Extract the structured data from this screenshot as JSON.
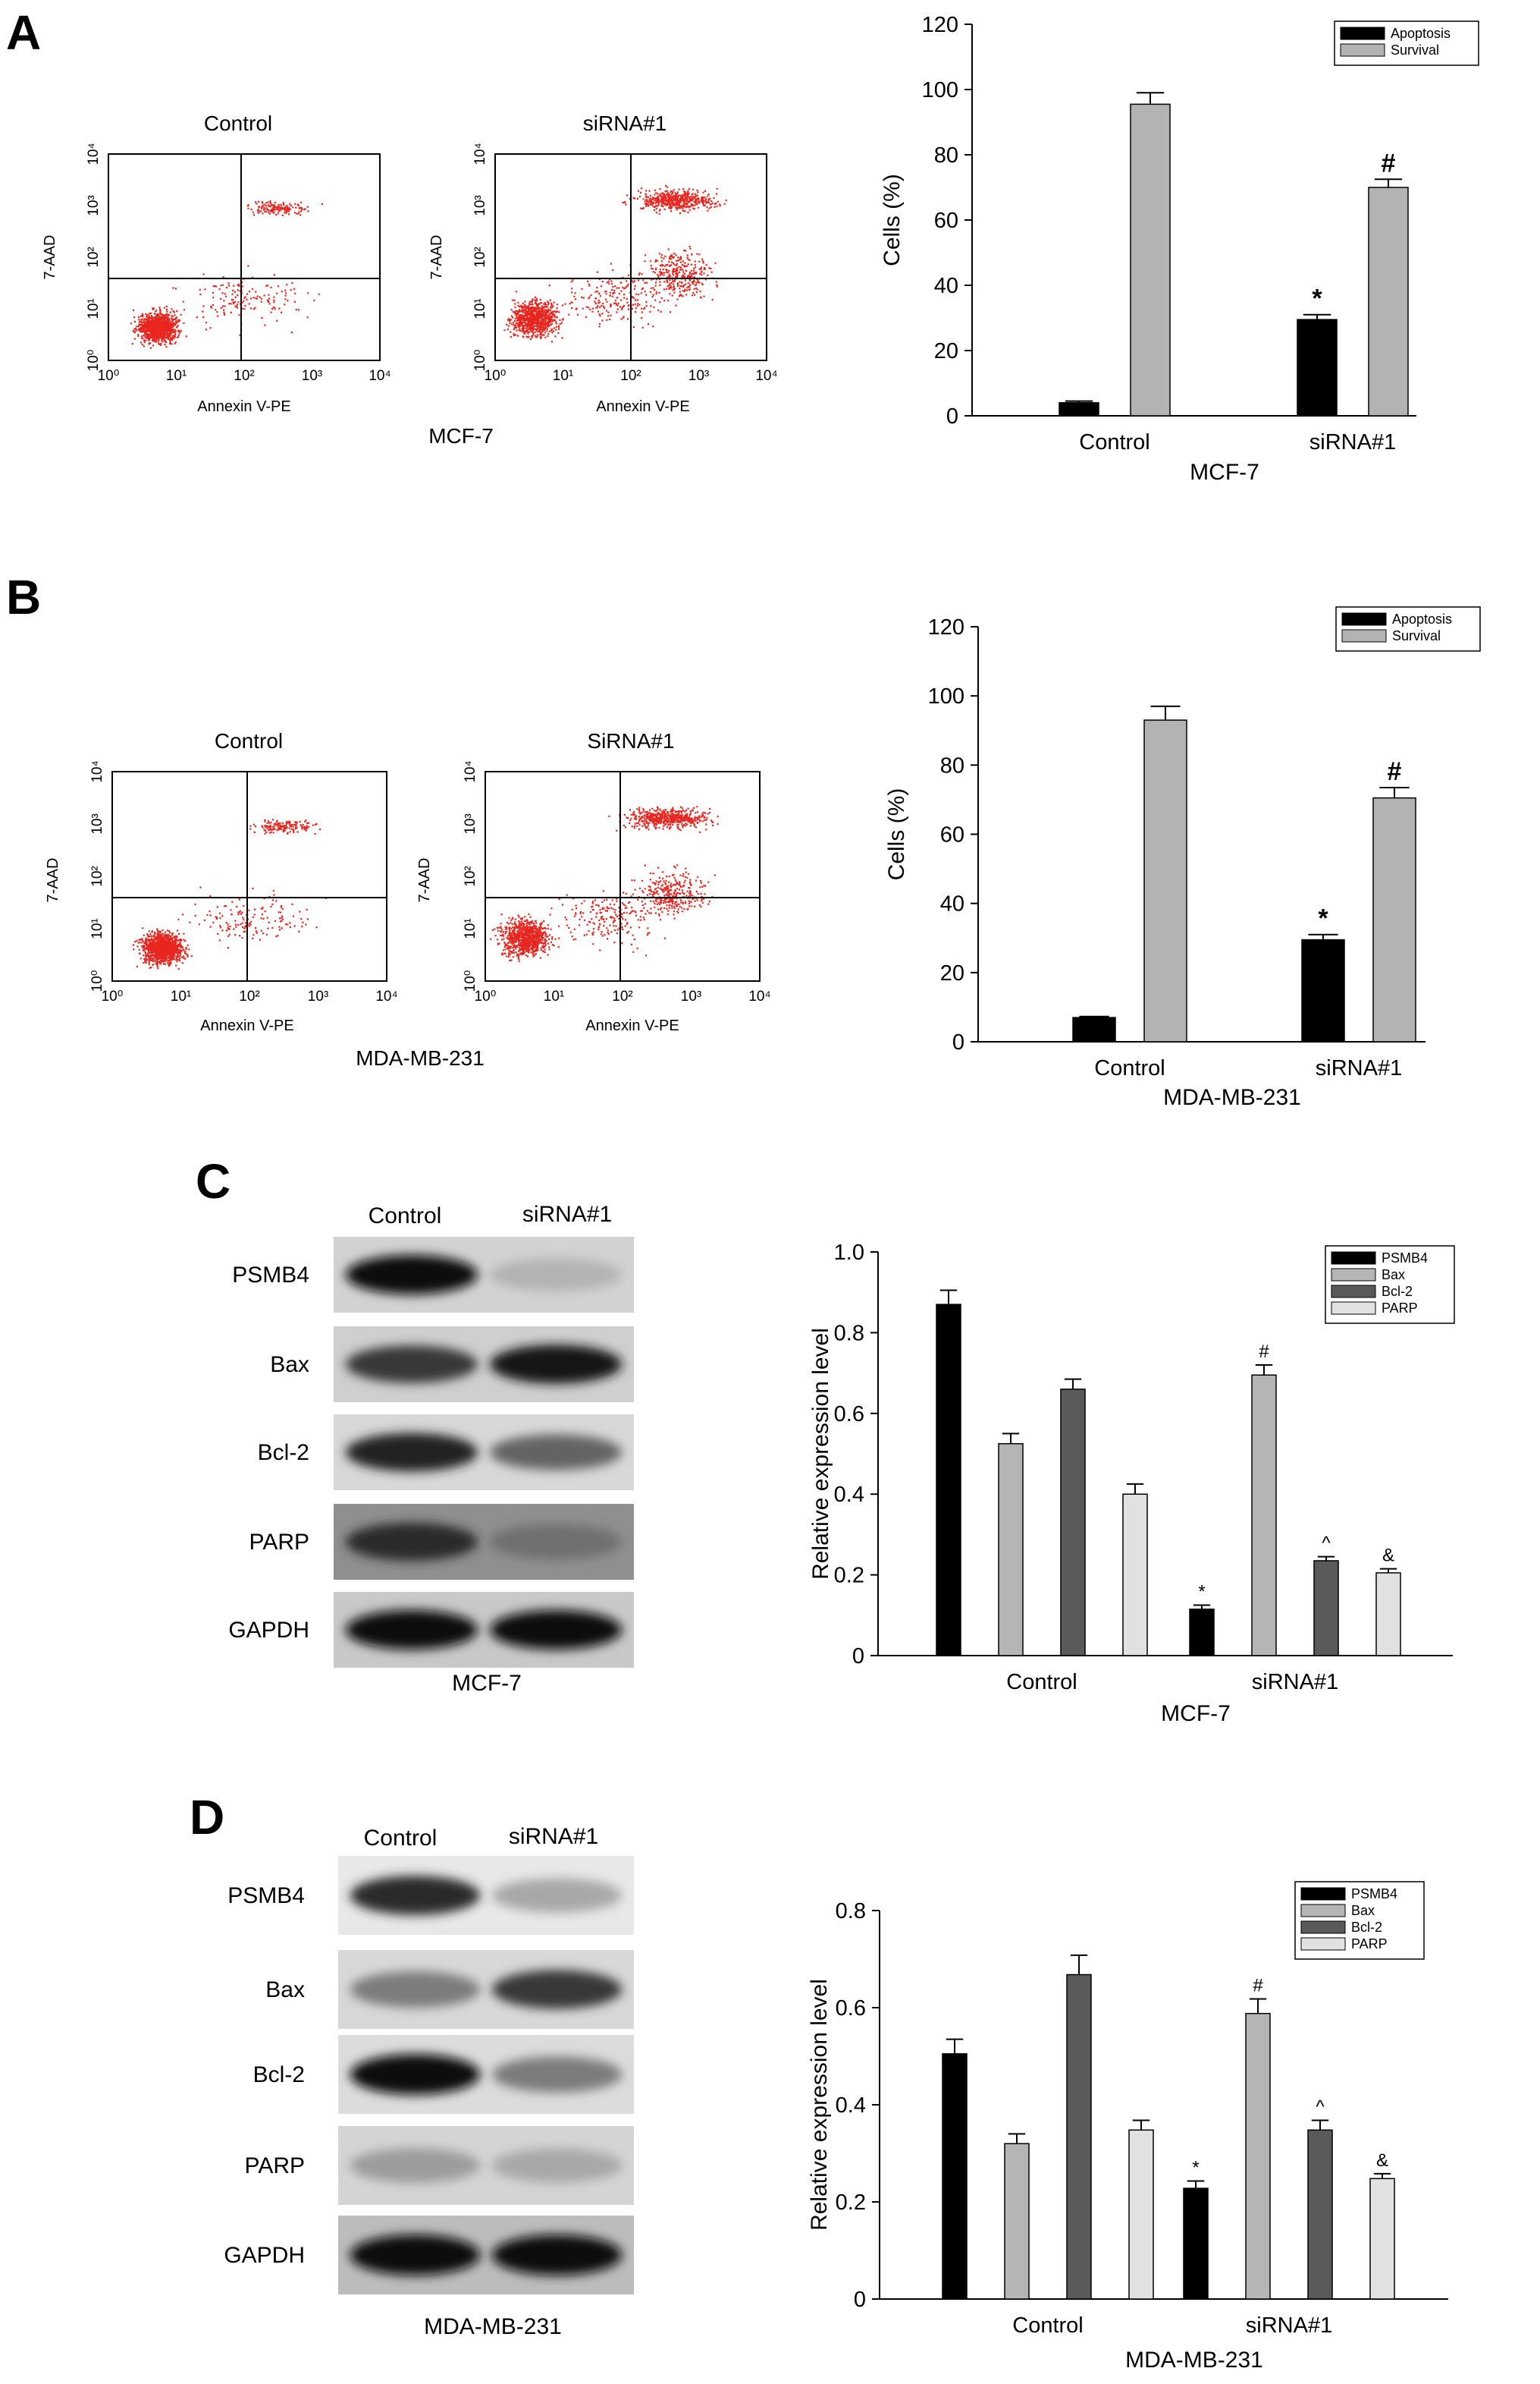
{
  "panels": {
    "A": {
      "label": "A",
      "flow": {
        "cell_line": "MCF-7",
        "plots": [
          {
            "title": "Control",
            "quadrant_percentages": "",
            "xlabel": "Annexin V-PE",
            "ylabel": "7-AAD"
          },
          {
            "title": "siRNA#1",
            "xlabel": "Annexin V-PE",
            "ylabel": "7-AAD"
          }
        ],
        "ticks": [
          "10⁰",
          "10¹",
          "10²",
          "10³",
          "10⁴"
        ]
      }
    },
    "B": {
      "label": "B",
      "flow": {
        "cell_line": "MDA-MB-231",
        "plots": [
          {
            "title": "Control",
            "xlabel": "Annexin V-PE",
            "ylabel": "7-AAD"
          },
          {
            "title": "SiRNA#1",
            "xlabel": "Annexin V-PE",
            "ylabel": "7-AAD"
          }
        ],
        "ticks": [
          "10⁰",
          "10¹",
          "10²",
          "10³",
          "10⁴"
        ]
      }
    },
    "C": {
      "label": "C",
      "blot": {
        "cell_line": "MCF-7",
        "lanes": [
          "Control",
          "siRNA#1"
        ],
        "proteins": [
          "PSMB4",
          "Bax",
          "Bcl-2",
          "PARP",
          "GAPDH"
        ]
      }
    },
    "D": {
      "label": "D",
      "blot": {
        "cell_line": "MDA-MB-231",
        "lanes": [
          "Control",
          "siRNA#1"
        ],
        "proteins": [
          "PSMB4",
          "Bax",
          "Bcl-2",
          "PARP",
          "GAPDH"
        ]
      }
    }
  },
  "colors": {
    "apoptosis": "#000000",
    "survival": "#b3b3b3",
    "psmb4": "#000000",
    "bax": "#b5b5b5",
    "bcl2": "#5a5a5a",
    "parp": "#e1e1e1",
    "dots": "#e8261f"
  },
  "chart_data": [
    {
      "id": "A",
      "type": "bar",
      "categories": [
        "Control",
        "siRNA#1"
      ],
      "series": [
        {
          "name": "Apoptosis",
          "values": [
            4,
            29.5
          ],
          "errors": [
            0.5,
            1.5
          ],
          "marks": [
            "",
            "*"
          ]
        },
        {
          "name": "Survival",
          "values": [
            95.5,
            70
          ],
          "errors": [
            3.5,
            2.5
          ],
          "marks": [
            "",
            "#"
          ]
        }
      ],
      "xlabel": "MCF-7",
      "ylabel": "Cells (%)",
      "ylim": [
        0,
        120
      ],
      "yticks": [
        0,
        20,
        40,
        60,
        80,
        100,
        120
      ],
      "legend": "top-right"
    },
    {
      "id": "B",
      "type": "bar",
      "categories": [
        "Control",
        "siRNA#1"
      ],
      "series": [
        {
          "name": "Apoptosis",
          "values": [
            7,
            29.5
          ],
          "errors": [
            0.3,
            1.5
          ],
          "marks": [
            "",
            "*"
          ]
        },
        {
          "name": "Survival",
          "values": [
            93,
            70.5
          ],
          "errors": [
            4,
            3
          ],
          "marks": [
            "",
            "#"
          ]
        }
      ],
      "xlabel": "MDA-MB-231",
      "ylabel": "Cells (%)",
      "ylim": [
        0,
        120
      ],
      "yticks": [
        0,
        20,
        40,
        60,
        80,
        100,
        120
      ],
      "legend": "top-right"
    },
    {
      "id": "C",
      "type": "bar",
      "categories": [
        "Control",
        "siRNA#1"
      ],
      "series": [
        {
          "name": "PSMB4",
          "values": [
            0.87,
            0.115
          ],
          "errors": [
            0.035,
            0.01
          ],
          "marks": [
            "",
            "*"
          ]
        },
        {
          "name": "Bax",
          "values": [
            0.525,
            0.695
          ],
          "errors": [
            0.025,
            0.025
          ],
          "marks": [
            "",
            "#"
          ]
        },
        {
          "name": "Bcl-2",
          "values": [
            0.66,
            0.235
          ],
          "errors": [
            0.025,
            0.01
          ],
          "marks": [
            "",
            "^"
          ]
        },
        {
          "name": "PARP",
          "values": [
            0.4,
            0.205
          ],
          "errors": [
            0.025,
            0.01
          ],
          "marks": [
            "",
            "&"
          ]
        }
      ],
      "xlabel": "MCF-7",
      "ylabel": "Relative expression level",
      "ylim": [
        0,
        1.0
      ],
      "yticks": [
        0,
        0.2,
        0.4,
        0.6,
        0.8,
        1.0
      ],
      "legend": "top-right"
    },
    {
      "id": "D",
      "type": "bar",
      "categories": [
        "Control",
        "siRNA#1"
      ],
      "series": [
        {
          "name": "PSMB4",
          "values": [
            0.505,
            0.228
          ],
          "errors": [
            0.03,
            0.015
          ],
          "marks": [
            "",
            "*"
          ]
        },
        {
          "name": "Bax",
          "values": [
            0.32,
            0.588
          ],
          "errors": [
            0.02,
            0.03
          ],
          "marks": [
            "",
            "#"
          ]
        },
        {
          "name": "Bcl-2",
          "values": [
            0.668,
            0.348
          ],
          "errors": [
            0.04,
            0.02
          ],
          "marks": [
            "",
            "^"
          ]
        },
        {
          "name": "PARP",
          "values": [
            0.348,
            0.248
          ],
          "errors": [
            0.02,
            0.01
          ],
          "marks": [
            "",
            "&"
          ]
        }
      ],
      "xlabel": "MDA-MB-231",
      "ylabel": "Relative expression level",
      "ylim": [
        0,
        0.8
      ],
      "yticks": [
        0,
        0.2,
        0.4,
        0.6,
        0.8
      ],
      "legend": "top-right"
    }
  ]
}
